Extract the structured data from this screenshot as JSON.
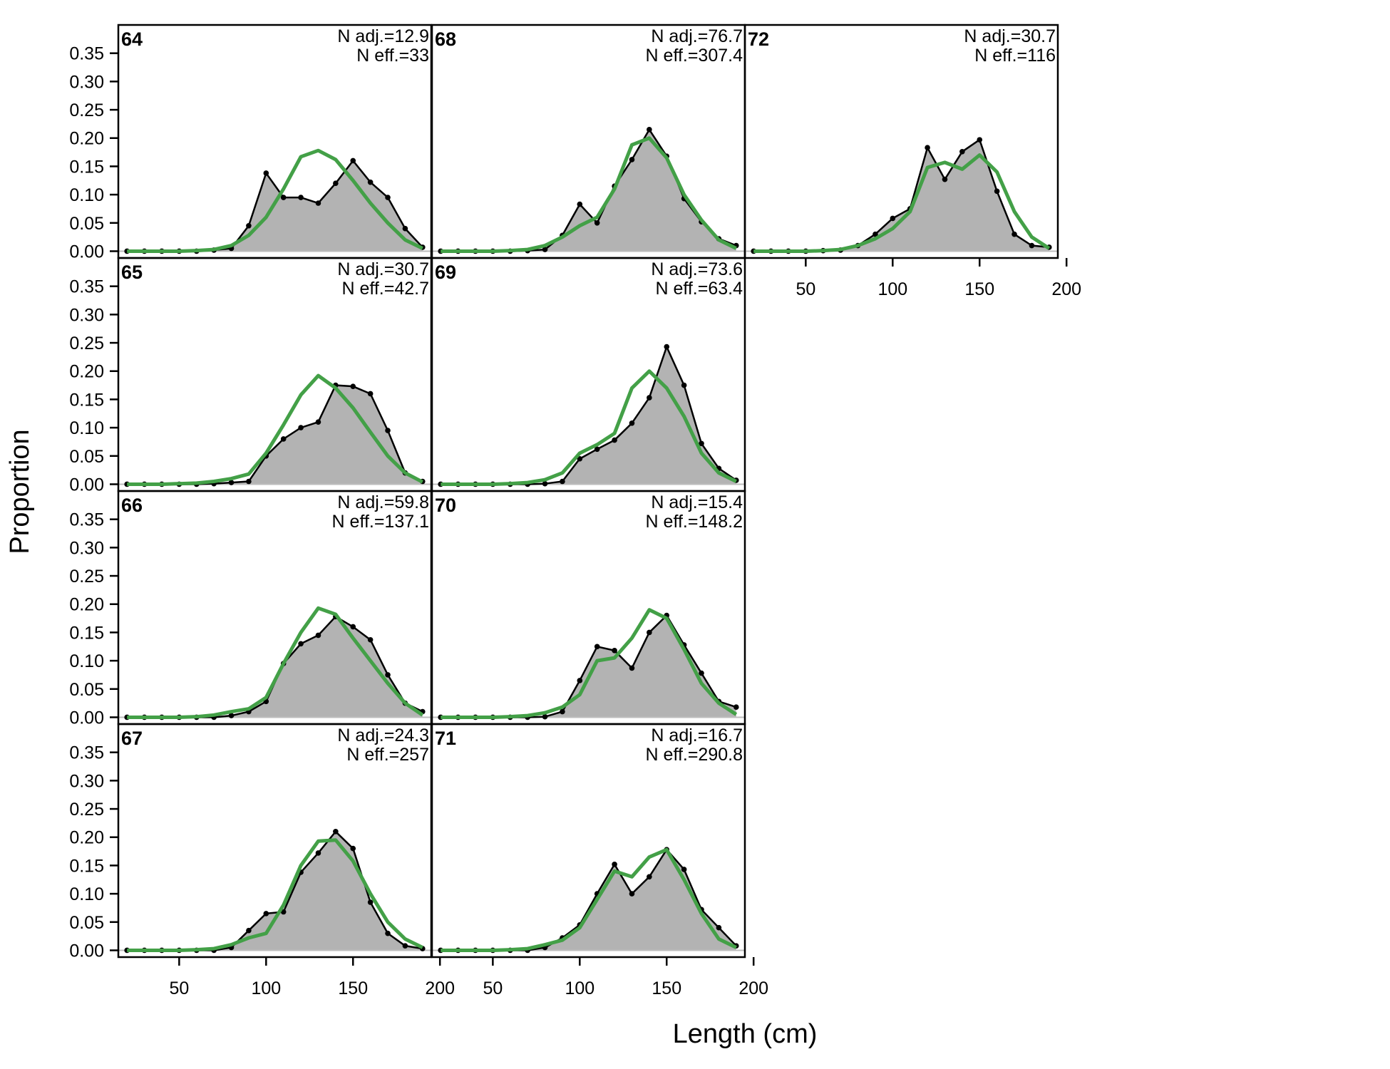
{
  "chart_data": {
    "type": "area",
    "xlabel": "Length (cm)",
    "ylabel": "Proportion",
    "xlim": [
      15,
      195
    ],
    "ylim": [
      -0.012,
      0.4
    ],
    "x_ticks": [
      50,
      100,
      150,
      200
    ],
    "y_ticks": [
      0.0,
      0.05,
      0.1,
      0.15,
      0.2,
      0.25,
      0.3,
      0.35
    ],
    "y_tick_labels": [
      "0.00",
      "0.05",
      "0.10",
      "0.15",
      "0.20",
      "0.25",
      "0.30",
      "0.35"
    ],
    "x_tick_labels": [
      "50",
      "100",
      "150",
      "200"
    ],
    "grid": false,
    "colors": {
      "observed_fill": "#b3b3b3",
      "observed_line": "#000000",
      "expected_line": "#43a047"
    },
    "x": [
      20,
      30,
      40,
      50,
      60,
      70,
      80,
      90,
      100,
      110,
      120,
      130,
      140,
      150,
      160,
      170,
      180,
      190
    ],
    "panels": [
      {
        "label": "64",
        "n_adj": "N adj.=12.9",
        "n_eff": "N eff.=33",
        "observed": [
          0,
          0,
          0,
          0,
          0,
          0.002,
          0.005,
          0.045,
          0.138,
          0.095,
          0.095,
          0.085,
          0.12,
          0.16,
          0.122,
          0.095,
          0.04,
          0.007
        ],
        "expected": [
          0,
          0,
          0,
          0,
          0.001,
          0.003,
          0.01,
          0.028,
          0.06,
          0.11,
          0.167,
          0.178,
          0.162,
          0.125,
          0.085,
          0.05,
          0.02,
          0.005
        ]
      },
      {
        "label": "65",
        "n_adj": "N adj.=30.7",
        "n_eff": "N eff.=42.7",
        "observed": [
          0,
          0,
          0,
          0,
          0,
          0.001,
          0.003,
          0.005,
          0.05,
          0.08,
          0.1,
          0.11,
          0.175,
          0.173,
          0.16,
          0.095,
          0.02,
          0.005
        ],
        "expected": [
          0,
          0,
          0,
          0.001,
          0.002,
          0.005,
          0.01,
          0.018,
          0.055,
          0.105,
          0.158,
          0.192,
          0.17,
          0.135,
          0.092,
          0.05,
          0.02,
          0.004
        ]
      },
      {
        "label": "66",
        "n_adj": "N adj.=59.8",
        "n_eff": "N eff.=137.1",
        "observed": [
          0,
          0,
          0,
          0,
          0,
          0,
          0.003,
          0.01,
          0.028,
          0.095,
          0.13,
          0.145,
          0.178,
          0.16,
          0.137,
          0.075,
          0.025,
          0.01
        ],
        "expected": [
          0,
          0,
          0,
          0,
          0.001,
          0.004,
          0.01,
          0.015,
          0.035,
          0.095,
          0.15,
          0.193,
          0.182,
          0.14,
          0.1,
          0.06,
          0.025,
          0.004
        ]
      },
      {
        "label": "67",
        "n_adj": "N adj.=24.3",
        "n_eff": "N eff.=257",
        "observed": [
          0,
          0,
          0,
          0,
          0,
          0,
          0.005,
          0.035,
          0.065,
          0.068,
          0.138,
          0.172,
          0.21,
          0.18,
          0.085,
          0.03,
          0.008,
          0.003
        ],
        "expected": [
          0,
          0,
          0,
          0,
          0.001,
          0.003,
          0.01,
          0.022,
          0.03,
          0.08,
          0.15,
          0.193,
          0.195,
          0.158,
          0.1,
          0.05,
          0.02,
          0.005
        ]
      },
      {
        "label": "68",
        "n_adj": "N adj.=76.7",
        "n_eff": "N eff.=307.4",
        "observed": [
          0,
          0,
          0,
          0,
          0,
          0.001,
          0.003,
          0.028,
          0.083,
          0.05,
          0.115,
          0.162,
          0.215,
          0.168,
          0.093,
          0.052,
          0.022,
          0.01
        ],
        "expected": [
          0,
          0,
          0,
          0,
          0.001,
          0.003,
          0.01,
          0.025,
          0.045,
          0.06,
          0.11,
          0.188,
          0.2,
          0.165,
          0.1,
          0.055,
          0.02,
          0.005
        ]
      },
      {
        "label": "69",
        "n_adj": "N adj.=73.6",
        "n_eff": "N eff.=63.4",
        "observed": [
          0,
          0,
          0,
          0,
          0,
          0,
          0.001,
          0.005,
          0.045,
          0.062,
          0.078,
          0.108,
          0.153,
          0.243,
          0.175,
          0.072,
          0.028,
          0.007
        ],
        "expected": [
          0,
          0,
          0,
          0,
          0.001,
          0.003,
          0.008,
          0.02,
          0.055,
          0.07,
          0.09,
          0.17,
          0.2,
          0.17,
          0.12,
          0.055,
          0.02,
          0.005
        ]
      },
      {
        "label": "70",
        "n_adj": "N adj.=15.4",
        "n_eff": "N eff.=148.2",
        "observed": [
          0,
          0,
          0,
          0,
          0,
          0,
          0.001,
          0.01,
          0.065,
          0.125,
          0.118,
          0.087,
          0.15,
          0.18,
          0.128,
          0.078,
          0.028,
          0.018
        ],
        "expected": [
          0,
          0,
          0,
          0,
          0.001,
          0.003,
          0.008,
          0.018,
          0.04,
          0.1,
          0.105,
          0.14,
          0.19,
          0.175,
          0.12,
          0.06,
          0.025,
          0.005
        ]
      },
      {
        "label": "71",
        "n_adj": "N adj.=16.7",
        "n_eff": "N eff.=290.8",
        "observed": [
          0,
          0,
          0,
          0,
          0,
          0,
          0.005,
          0.022,
          0.045,
          0.1,
          0.152,
          0.1,
          0.13,
          0.178,
          0.143,
          0.072,
          0.04,
          0.008
        ],
        "expected": [
          0,
          0,
          0,
          0,
          0.001,
          0.003,
          0.01,
          0.018,
          0.04,
          0.09,
          0.14,
          0.13,
          0.165,
          0.178,
          0.125,
          0.065,
          0.02,
          0.005
        ]
      },
      {
        "label": "72",
        "n_adj": "N adj.=30.7",
        "n_eff": "N eff.=116",
        "observed": [
          0,
          0,
          0,
          0,
          0.001,
          0.002,
          0.01,
          0.03,
          0.058,
          0.075,
          0.183,
          0.127,
          0.176,
          0.197,
          0.106,
          0.03,
          0.01,
          0.007
        ],
        "expected": [
          0,
          0,
          0,
          0,
          0.001,
          0.003,
          0.01,
          0.022,
          0.04,
          0.07,
          0.148,
          0.157,
          0.145,
          0.17,
          0.14,
          0.07,
          0.025,
          0.005
        ]
      }
    ]
  }
}
